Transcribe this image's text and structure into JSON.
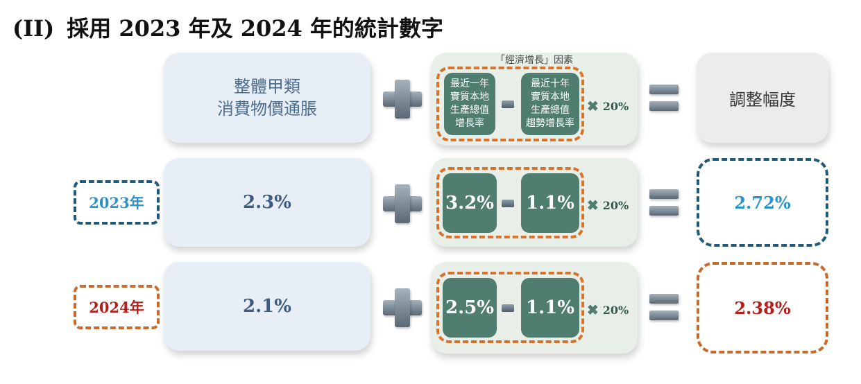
{
  "title": {
    "label": "(II)",
    "text": "採用 2023 年及 2024 年的統計數字"
  },
  "header": {
    "cpi_line1": "整體甲類",
    "cpi_line2": "消費物價通脹",
    "factor_caption": "「經濟增長」因素",
    "gdp_1yr": [
      "最近一年",
      "實質本地",
      "生產總值",
      "增長率"
    ],
    "gdp_10yr": [
      "最近十年",
      "實質本地",
      "生產總值",
      "趨勢增長率"
    ],
    "multiplier": "20%",
    "result_label": "調整幅度"
  },
  "rows": [
    {
      "year": "2023年",
      "cpi": "2.3%",
      "gdp_1yr": "3.2%",
      "gdp_10yr": "1.1%",
      "multiplier": "20%",
      "result": "2.72%"
    },
    {
      "year": "2024年",
      "cpi": "2.1%",
      "gdp_1yr": "2.5%",
      "gdp_10yr": "1.1%",
      "multiplier": "20%",
      "result": "2.38%"
    }
  ],
  "colors": {
    "row_2023": "#2b93c9",
    "row_2023_border": "#1f5a78",
    "row_2024": "#b3201b",
    "row_2024_border": "#c86a2a",
    "tile": "#4f7d6f",
    "dashed_orange": "#d9722a"
  },
  "icons": [
    "plus-icon",
    "minus-icon",
    "times-icon",
    "equals-icon"
  ]
}
